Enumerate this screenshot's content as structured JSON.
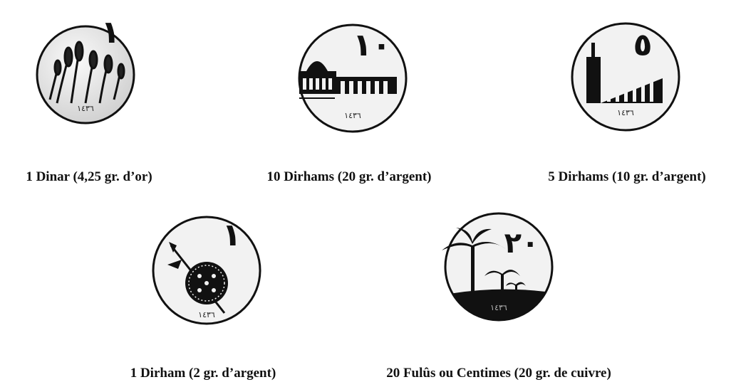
{
  "coins": [
    {
      "denomination": "١",
      "year": "١٤٣٦",
      "caption": "1 Dinar (4,25 gr. d’or)"
    },
    {
      "denomination": "١٠",
      "year": "١٤٣٦",
      "caption": "10 Dirhams (20 gr. d’argent)"
    },
    {
      "denomination": "٥",
      "year": "١٤٣٦",
      "caption": "5 Dirhams (10 gr. d’argent)"
    },
    {
      "denomination": "١",
      "year": "١٤٣٦",
      "caption": "1 Dirham (2 gr. d’argent)"
    },
    {
      "denomination": "٢٠",
      "year": "١٤٣٦",
      "caption": "20 Fulûs ou Centimes (20 gr. de cuivre)"
    }
  ]
}
